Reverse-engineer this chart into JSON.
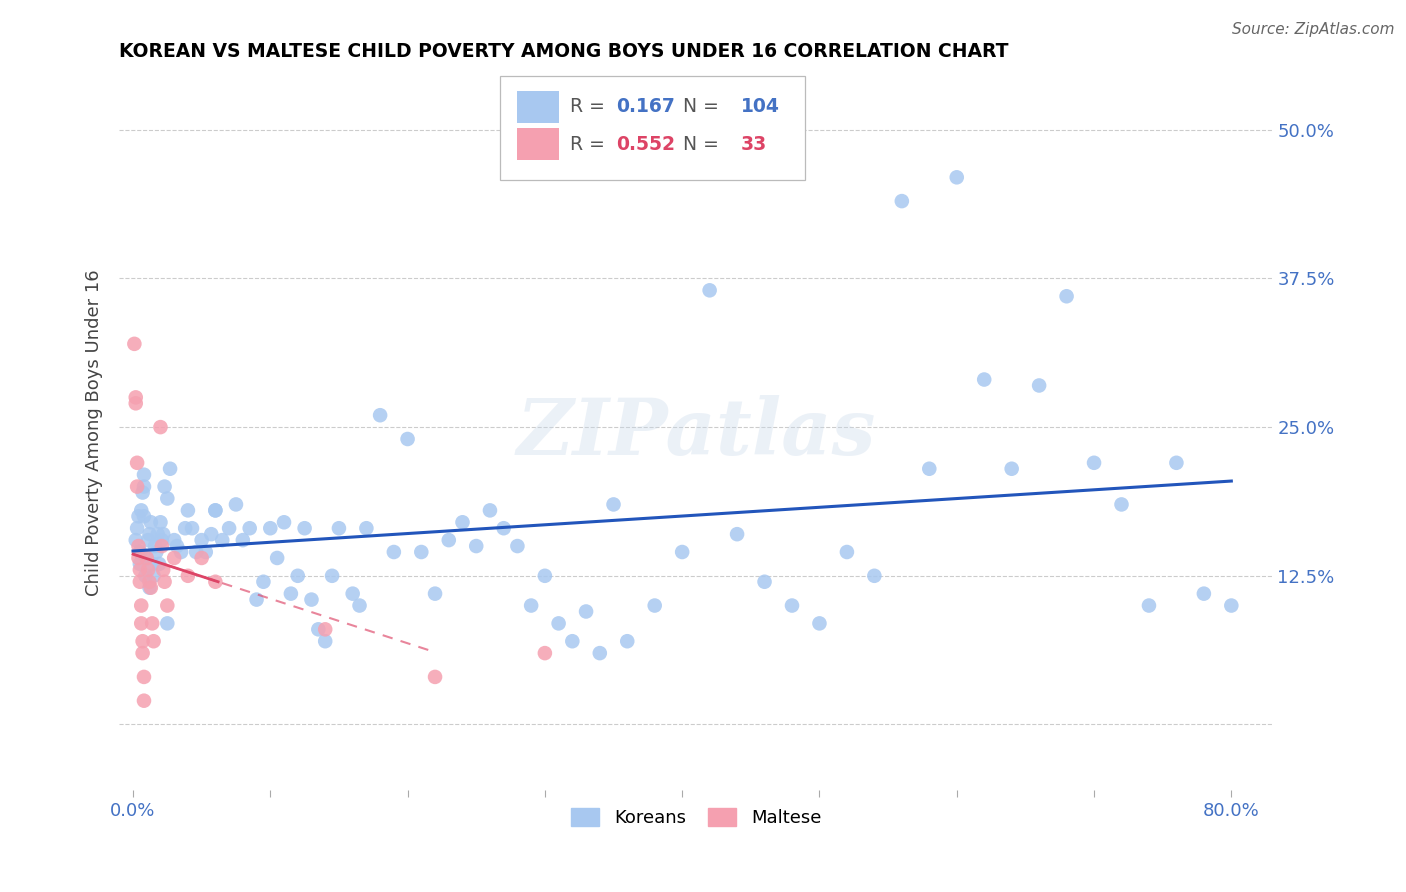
{
  "title": "KOREAN VS MALTESE CHILD POVERTY AMONG BOYS UNDER 16 CORRELATION CHART",
  "source": "Source: ZipAtlas.com",
  "ylabel": "Child Poverty Among Boys Under 16",
  "ytick_vals": [
    0.0,
    0.125,
    0.25,
    0.375,
    0.5
  ],
  "ytick_labels": [
    "",
    "12.5%",
    "25.0%",
    "37.5%",
    "50.0%"
  ],
  "xlim": [
    -0.01,
    0.83
  ],
  "ylim": [
    -0.055,
    0.545
  ],
  "watermark": "ZIPatlas",
  "korean_color": "#a8c8f0",
  "maltese_color": "#f5a0b0",
  "korean_line_color": "#2255bb",
  "maltese_line_color": "#dd4466",
  "korean_R": 0.167,
  "korean_N": 104,
  "maltese_R": 0.552,
  "maltese_N": 33,
  "background_color": "#ffffff",
  "grid_color": "#cccccc",
  "tick_color": "#4472c4",
  "title_color": "#000000",
  "legend_box_korean": "#a8c8f0",
  "legend_box_maltese": "#f5a0b0",
  "koreans_x": [
    0.002,
    0.003,
    0.004,
    0.005,
    0.005,
    0.006,
    0.007,
    0.008,
    0.008,
    0.009,
    0.01,
    0.011,
    0.012,
    0.013,
    0.014,
    0.015,
    0.016,
    0.017,
    0.018,
    0.019,
    0.02,
    0.021,
    0.022,
    0.023,
    0.025,
    0.027,
    0.03,
    0.032,
    0.035,
    0.038,
    0.04,
    0.043,
    0.046,
    0.05,
    0.053,
    0.057,
    0.06,
    0.065,
    0.07,
    0.075,
    0.08,
    0.085,
    0.09,
    0.095,
    0.1,
    0.105,
    0.11,
    0.115,
    0.12,
    0.125,
    0.13,
    0.135,
    0.14,
    0.145,
    0.15,
    0.16,
    0.165,
    0.17,
    0.18,
    0.19,
    0.2,
    0.21,
    0.22,
    0.23,
    0.24,
    0.25,
    0.26,
    0.27,
    0.28,
    0.29,
    0.3,
    0.31,
    0.32,
    0.33,
    0.34,
    0.35,
    0.36,
    0.38,
    0.4,
    0.42,
    0.44,
    0.46,
    0.48,
    0.5,
    0.52,
    0.54,
    0.56,
    0.58,
    0.6,
    0.62,
    0.64,
    0.66,
    0.68,
    0.7,
    0.72,
    0.74,
    0.76,
    0.78,
    0.8,
    0.005,
    0.008,
    0.012,
    0.025,
    0.06
  ],
  "koreans_y": [
    0.155,
    0.165,
    0.175,
    0.145,
    0.135,
    0.18,
    0.195,
    0.21,
    0.175,
    0.125,
    0.14,
    0.155,
    0.16,
    0.17,
    0.135,
    0.125,
    0.15,
    0.145,
    0.16,
    0.135,
    0.17,
    0.155,
    0.16,
    0.2,
    0.19,
    0.215,
    0.155,
    0.15,
    0.145,
    0.165,
    0.18,
    0.165,
    0.145,
    0.155,
    0.145,
    0.16,
    0.18,
    0.155,
    0.165,
    0.185,
    0.155,
    0.165,
    0.105,
    0.12,
    0.165,
    0.14,
    0.17,
    0.11,
    0.125,
    0.165,
    0.105,
    0.08,
    0.07,
    0.125,
    0.165,
    0.11,
    0.1,
    0.165,
    0.26,
    0.145,
    0.24,
    0.145,
    0.11,
    0.155,
    0.17,
    0.15,
    0.18,
    0.165,
    0.15,
    0.1,
    0.125,
    0.085,
    0.07,
    0.095,
    0.06,
    0.185,
    0.07,
    0.1,
    0.145,
    0.365,
    0.16,
    0.12,
    0.1,
    0.085,
    0.145,
    0.125,
    0.44,
    0.215,
    0.46,
    0.29,
    0.215,
    0.285,
    0.36,
    0.22,
    0.185,
    0.1,
    0.22,
    0.11,
    0.1,
    0.145,
    0.2,
    0.115,
    0.085,
    0.18
  ],
  "maltese_x": [
    0.001,
    0.002,
    0.002,
    0.003,
    0.003,
    0.004,
    0.004,
    0.005,
    0.005,
    0.006,
    0.006,
    0.007,
    0.007,
    0.008,
    0.008,
    0.01,
    0.011,
    0.012,
    0.013,
    0.014,
    0.015,
    0.02,
    0.021,
    0.022,
    0.023,
    0.025,
    0.03,
    0.04,
    0.05,
    0.06,
    0.14,
    0.22,
    0.3
  ],
  "maltese_y": [
    0.32,
    0.275,
    0.27,
    0.22,
    0.2,
    0.15,
    0.14,
    0.13,
    0.12,
    0.1,
    0.085,
    0.07,
    0.06,
    0.04,
    0.02,
    0.14,
    0.13,
    0.12,
    0.115,
    0.085,
    0.07,
    0.25,
    0.15,
    0.13,
    0.12,
    0.1,
    0.14,
    0.125,
    0.14,
    0.12,
    0.08,
    0.04,
    0.06
  ]
}
